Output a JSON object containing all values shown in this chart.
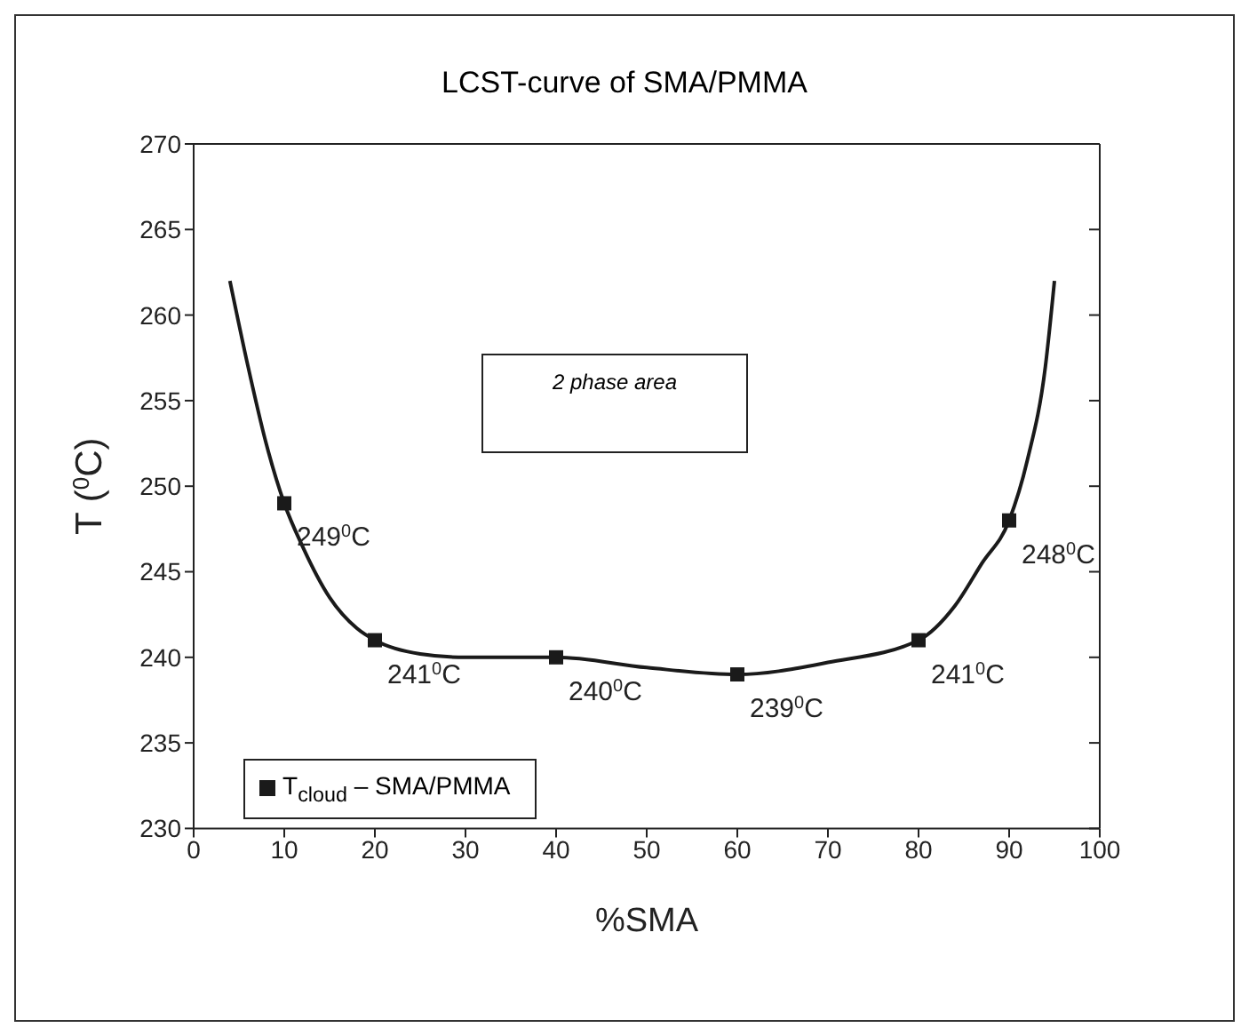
{
  "chart_data": {
    "type": "scatter",
    "title": "LCST-curve of SMA/PMMA",
    "xlabel": "%SMA",
    "ylabel": "T ($^{0}$C)",
    "xlim": [
      0,
      100
    ],
    "xticks": [
      0,
      10,
      20,
      30,
      40,
      50,
      60,
      70,
      80,
      90,
      100
    ],
    "ylim": [
      230,
      270
    ],
    "yticks": [
      230,
      235,
      240,
      245,
      250,
      255,
      260,
      265,
      270
    ],
    "grid": false,
    "legend": "bottom left",
    "marker": "square",
    "series": [
      {
        "name": "T$_{cloud}$ – SMA/PMMA",
        "type": "scatter",
        "color": "#1a1a1a",
        "x": [
          10,
          20,
          40,
          60,
          80,
          90
        ],
        "values": [
          249,
          241,
          240,
          239,
          241,
          248
        ]
      },
      {
        "type": "line",
        "color": "#1a1a1a",
        "marker": "none",
        "line_style": "solid",
        "x": [
          4,
          6,
          8,
          10,
          12,
          15,
          18,
          20,
          25,
          30,
          40,
          50,
          60,
          70,
          80,
          84,
          87,
          90,
          92,
          94,
          95
        ],
        "values": [
          262,
          257,
          252.5,
          249,
          246.5,
          243.5,
          241.7,
          241,
          240.2,
          240,
          240,
          239.4,
          239,
          239.7,
          241,
          243,
          245.5,
          248,
          251.5,
          257,
          262
        ]
      }
    ],
    "annotations": [
      "2 phase area",
      {
        "text": "249$^{0}$C",
        "x": 10,
        "y": 249
      },
      {
        "text": "241$^{0}$C",
        "x": 20,
        "y": 241
      },
      {
        "text": "240$^{0}$C",
        "x": 40,
        "y": 240
      },
      {
        "text": "239$^{0}$C",
        "x": 60,
        "y": 239
      },
      {
        "text": "241$^{0}$C",
        "x": 80,
        "y": 241
      },
      {
        "text": "248$^{0}$C",
        "x": 90,
        "y": 248
      }
    ]
  }
}
